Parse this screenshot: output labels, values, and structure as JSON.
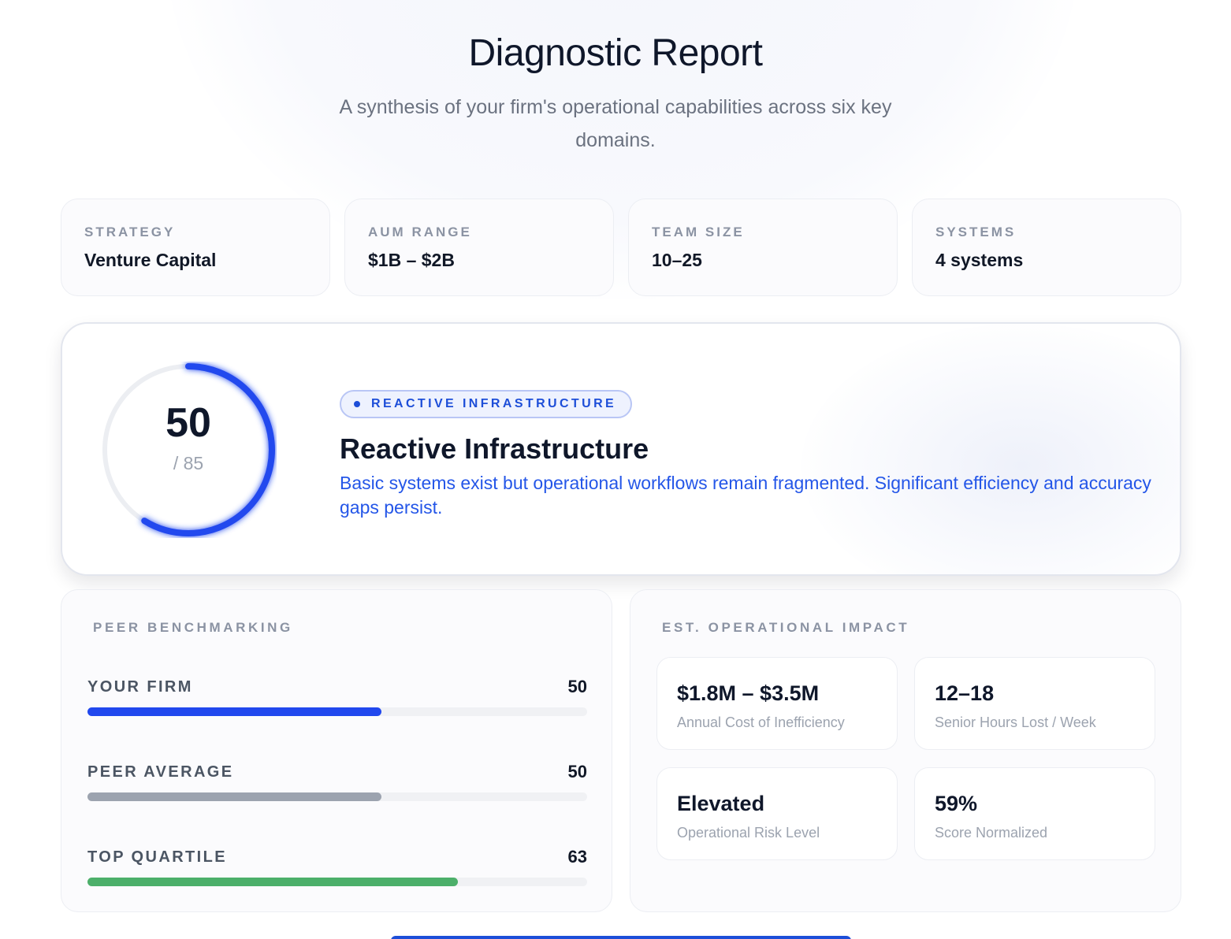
{
  "header": {
    "title": "Diagnostic Report",
    "subtitle": "A synthesis of your firm's operational capabilities across six key domains."
  },
  "profile": [
    {
      "label": "STRATEGY",
      "value": "Venture Capital"
    },
    {
      "label": "AUM RANGE",
      "value": "$1B – $2B"
    },
    {
      "label": "TEAM SIZE",
      "value": "10–25"
    },
    {
      "label": "SYSTEMS",
      "value": "4 systems"
    }
  ],
  "score": {
    "value": "50",
    "max_label": "/ 85",
    "fraction": 0.588,
    "ring_color": "#2148ee",
    "track_color": "#eceef2"
  },
  "tier": {
    "badge": "REACTIVE INFRASTRUCTURE",
    "title": "Reactive Infrastructure",
    "description": "Basic systems exist but operational workflows remain fragmented. Significant efficiency and accuracy gaps persist."
  },
  "benchmark": {
    "label": "PEER BENCHMARKING",
    "scale_max": 85,
    "rows": [
      {
        "name": "YOUR FIRM",
        "value": "50",
        "score": 50,
        "color": "#2148ee"
      },
      {
        "name": "PEER AVERAGE",
        "value": "50",
        "score": 50,
        "color": "#9ca3af"
      },
      {
        "name": "TOP QUARTILE",
        "value": "63",
        "score": 63,
        "color": "#4caf6a"
      }
    ]
  },
  "impact": {
    "label": "EST. OPERATIONAL IMPACT",
    "cards": [
      {
        "value": "$1.8M – $3.5M",
        "label": "Annual Cost of Inefficiency"
      },
      {
        "value": "12–18",
        "label": "Senior Hours Lost / Week"
      },
      {
        "value": "Elevated",
        "label": "Operational Risk Level"
      },
      {
        "value": "59%",
        "label": "Score Normalized"
      }
    ]
  }
}
